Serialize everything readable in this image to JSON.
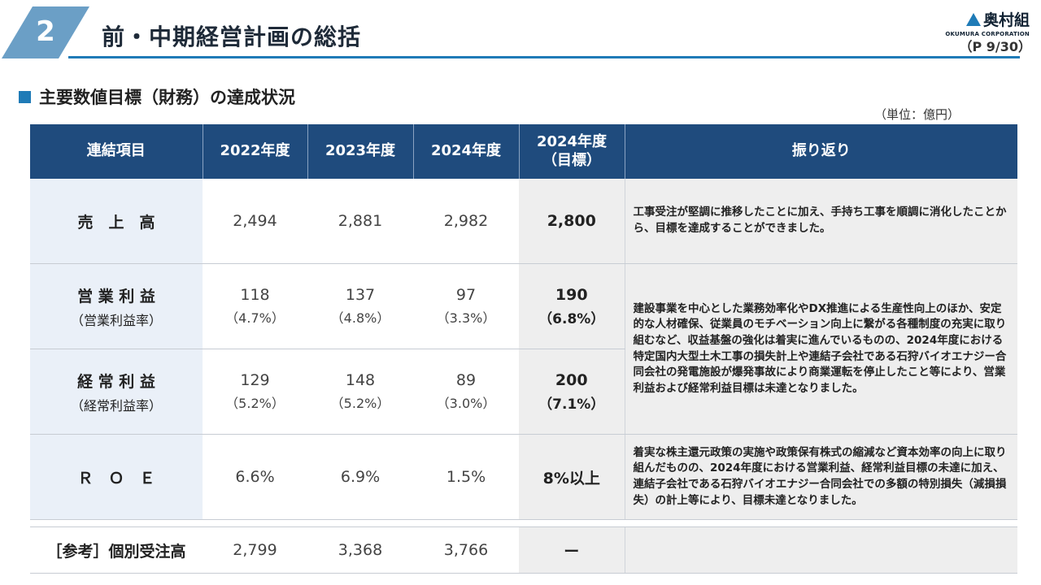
{
  "header": {
    "section_number": "2",
    "title": "前・中期経営計画の総括",
    "logo_name": "奥村組",
    "logo_en": "OKUMURA CORPORATION",
    "page": "（P 9/30）"
  },
  "subheading": "主要数値目標（財務）の達成状況",
  "unit": "（単位：億円）",
  "table": {
    "columns": [
      "連結項目",
      "2022年度",
      "2023年度",
      "2024年度",
      "2024年度\n（目標）",
      "振り返り"
    ],
    "rows": [
      {
        "label": "売　上　高",
        "values": [
          "2,494",
          "2,881",
          "2,982"
        ],
        "target": "2,800",
        "review": "工事受注が堅調に推移したことに加え、手持ち工事を順調に消化したことから、目標を達成することができました。"
      },
      {
        "label": "営 業 利 益",
        "label_sub": "（営業利益率）",
        "values": [
          "118",
          "137",
          "97"
        ],
        "values_sub": [
          "（4.7%）",
          "（4.8%）",
          "（3.3%）"
        ],
        "target": "190",
        "target_sub": "（6.8%）"
      },
      {
        "label": "経 常 利 益",
        "label_sub": "（経常利益率）",
        "values": [
          "129",
          "148",
          "89"
        ],
        "values_sub": [
          "（5.2%）",
          "（5.2%）",
          "（3.0%）"
        ],
        "target": "200",
        "target_sub": "（7.1%）"
      },
      {
        "label": "Ｒ　Ｏ　Ｅ",
        "values": [
          "6.6%",
          "6.9%",
          "1.5%"
        ],
        "target": "8%以上",
        "review": "着実な株主還元政策の実施や政策保有株式の縮減など資本効率の向上に取り組んだものの、2024年度における営業利益、経常利益目標の未達に加え、連結子会社である石狩バイオエナジー合同会社での多額の特別損失（減損損失）の計上等により、目標未達となりました。"
      }
    ],
    "profit_review": "建設事業を中心とした業務効率化やDX推進による生産性向上のほか、安定的な人材確保、従業員のモチベーション向上に繋がる各種制度の充実に取り組むなど、収益基盤の強化は着実に進んでいるものの、2024年度における特定国内大型土木工事の損失計上や連結子会社である石狩バイオエナジー合同会社の発電施設が爆発事故により商業運転を停止したこと等により、営業利益および経常利益目標は未達となりました。",
    "reference_row": {
      "label": "［参考］個別受注高",
      "values": [
        "2,799",
        "3,368",
        "3,766"
      ],
      "target": "ー"
    }
  },
  "colors": {
    "header_bg": "#1f4b7d",
    "accent": "#1f7bb7",
    "label_bg": "#eaf0f8",
    "target_bg": "#eeeeee"
  }
}
